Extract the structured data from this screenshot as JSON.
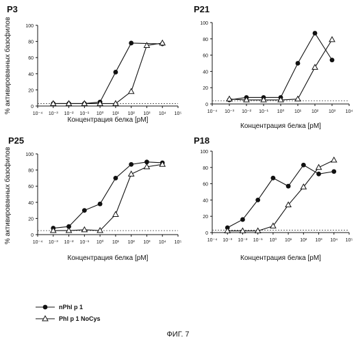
{
  "figure_caption": "ФИГ. 7",
  "legend": [
    {
      "label": "nPhl p 1",
      "marker": "filled-circle"
    },
    {
      "label": "Phl p 1 NoCys",
      "marker": "open-triangle"
    }
  ],
  "chart_data": [
    {
      "type": "line",
      "title": "P3",
      "xlabel": "Концентрация белка [pM]",
      "ylabel": "% активированных базофилов",
      "x_scale": "log",
      "xlim": [
        0.0001,
        100000
      ],
      "x_ticks": [
        "10⁻⁴",
        "10⁻³",
        "10⁻²",
        "10⁻¹",
        "10⁰",
        "10¹",
        "10²",
        "10³",
        "10⁴",
        "10⁵"
      ],
      "ylim": [
        0,
        100
      ],
      "y_ticks": [
        0,
        20,
        40,
        60,
        80,
        100
      ],
      "baseline": 3,
      "series": [
        {
          "name": "nPhl p 1",
          "x": [
            0.001,
            0.01,
            0.1,
            1,
            10,
            100,
            10000
          ],
          "y": [
            3,
            3,
            3,
            5,
            42,
            78,
            77
          ]
        },
        {
          "name": "Phl p 1 NoCys",
          "x": [
            0.001,
            0.01,
            0.1,
            1,
            10,
            100,
            1000,
            10000
          ],
          "y": [
            3,
            3,
            3,
            3,
            3,
            18,
            75,
            78
          ]
        }
      ]
    },
    {
      "type": "line",
      "title": "P21",
      "xlabel": "Концентрация белка [pM]",
      "ylabel": "% активированных базофилов",
      "x_scale": "log",
      "xlim": [
        0.0001,
        10000
      ],
      "x_ticks": [
        "10⁻⁴",
        "10⁻³",
        "10⁻²",
        "10⁻¹",
        "10⁰",
        "10¹",
        "10²",
        "10³",
        "10⁴"
      ],
      "ylim": [
        0,
        100
      ],
      "y_ticks": [
        0,
        20,
        40,
        60,
        80,
        100
      ],
      "baseline": 4,
      "series": [
        {
          "name": "nPhl p 1",
          "x": [
            0.001,
            0.01,
            0.1,
            1,
            10,
            100,
            1000
          ],
          "y": [
            5,
            8,
            8,
            8,
            50,
            87,
            54
          ]
        },
        {
          "name": "Phl p 1 NoCys",
          "x": [
            0.001,
            0.01,
            0.1,
            1,
            10,
            100,
            1000
          ],
          "y": [
            6,
            5,
            5,
            5,
            6,
            45,
            79
          ]
        }
      ]
    },
    {
      "type": "line",
      "title": "P25",
      "xlabel": "Концентрация белка [pM]",
      "ylabel": "% активированных базофилов",
      "x_scale": "log",
      "xlim": [
        0.0001,
        100000
      ],
      "x_ticks": [
        "10⁻⁴",
        "10⁻³",
        "10⁻²",
        "10⁻¹",
        "10⁰",
        "10¹",
        "10²",
        "10³",
        "10⁴",
        "10⁵"
      ],
      "ylim": [
        0,
        100
      ],
      "y_ticks": [
        0,
        20,
        40,
        60,
        80,
        100
      ],
      "baseline": 5,
      "series": [
        {
          "name": "nPhl p 1",
          "x": [
            0.001,
            0.01,
            0.1,
            1,
            10,
            100,
            1000,
            10000
          ],
          "y": [
            8,
            10,
            30,
            38,
            70,
            87,
            90,
            89
          ]
        },
        {
          "name": "Phl p 1 NoCys",
          "x": [
            0.001,
            0.01,
            0.1,
            1,
            10,
            100,
            1000,
            10000
          ],
          "y": [
            5,
            5,
            6,
            5,
            25,
            75,
            84,
            87
          ]
        }
      ]
    },
    {
      "type": "line",
      "title": "P18",
      "xlabel": "Концентрация белка [pM]",
      "ylabel": "% активированных базофилов",
      "x_scale": "log",
      "xlim": [
        0.0001,
        100000
      ],
      "x_ticks": [
        "10⁻⁴",
        "10⁻³",
        "10⁻²",
        "10⁻¹",
        "10⁰",
        "10¹",
        "10²",
        "10³",
        "10⁴",
        "10⁵"
      ],
      "ylim": [
        0,
        100
      ],
      "y_ticks": [
        0,
        20,
        40,
        60,
        80,
        100
      ],
      "baseline": 3,
      "series": [
        {
          "name": "nPhl p 1",
          "x": [
            0.001,
            0.01,
            0.1,
            1,
            10,
            100,
            1000,
            10000
          ],
          "y": [
            6,
            16,
            40,
            67,
            57,
            83,
            72,
            75
          ]
        },
        {
          "name": "Phl p 1 NoCys",
          "x": [
            0.001,
            0.01,
            0.1,
            1,
            10,
            100,
            1000,
            10000
          ],
          "y": [
            2,
            2,
            2,
            8,
            34,
            56,
            80,
            89
          ]
        }
      ]
    }
  ]
}
